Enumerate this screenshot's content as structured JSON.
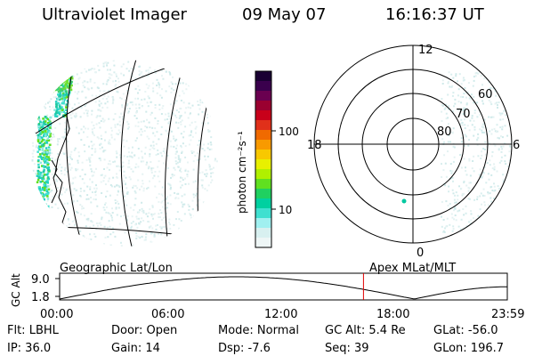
{
  "header": {
    "app_title": "Ultraviolet Imager",
    "date": "09 May 07",
    "time": "16:16:37 UT"
  },
  "colorbar": {
    "unit_label": "photon cm⁻²s⁻¹",
    "ticks": [
      "100",
      "10"
    ],
    "colors": [
      "#1a0033",
      "#3a004d",
      "#6a0050",
      "#9a0030",
      "#c8001a",
      "#e0301a",
      "#f06a00",
      "#f89a00",
      "#f8c800",
      "#e8f000",
      "#b0f000",
      "#60e020",
      "#20d060",
      "#00d0a0",
      "#40e0d0",
      "#a0f0f0",
      "#d8f0f0",
      "#eef6f6"
    ]
  },
  "left_panel": {
    "caption": "Geographic Lat/Lon"
  },
  "polar_plot": {
    "caption": "Apex MLat/MLT",
    "mlt_labels": {
      "top": "12",
      "left": "18",
      "right": "6",
      "bottom": "0"
    },
    "lat_labels": [
      "60",
      "70",
      "80"
    ]
  },
  "altitude_strip": {
    "axis_label": "GC Alt",
    "y_ticks": [
      "9.0",
      "1.8"
    ],
    "x_ticks": [
      "00:00",
      "06:00",
      "12:00",
      "18:00",
      "23:59"
    ],
    "marker_color": "#e00000",
    "marker_time": "16:16:37"
  },
  "footer": {
    "filter": "Flt: LBHL",
    "ip": "IP: 36.0",
    "door": "Door: Open",
    "gain": "Gain: 14",
    "mode": "Mode: Normal",
    "dsp": "Dsp:   -7.6",
    "gc_alt": "GC Alt: 5.4 Re",
    "seq": "Seq: 39",
    "glat": "GLat: -56.0",
    "glon": "GLon: 196.7"
  }
}
